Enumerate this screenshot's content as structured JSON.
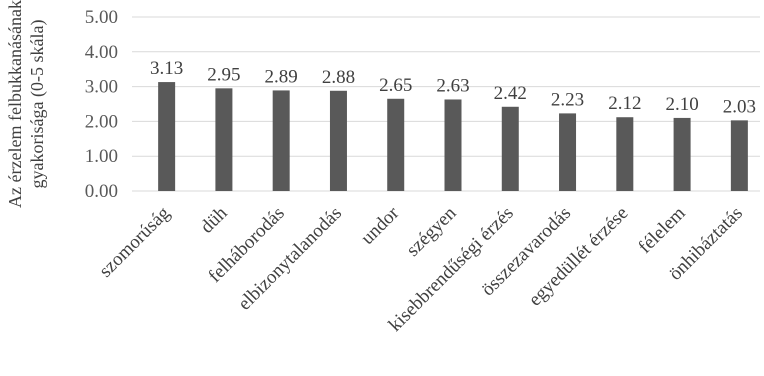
{
  "chart_data": {
    "type": "bar",
    "title": "",
    "xlabel": "",
    "ylabel_line1": "Az érzelem felbukkanásának",
    "ylabel_line2": "gyakorisága (0-5 skála)",
    "ylim": [
      0,
      5
    ],
    "yticks": [
      "0.00",
      "1.00",
      "2.00",
      "3.00",
      "4.00",
      "5.00"
    ],
    "grid": true,
    "bar_color": "#595959",
    "categories": [
      "szomorúság",
      "düh",
      "felháborodás",
      "elbizonytalanodás",
      "undor",
      "szégyen",
      "kisebbrendűségi érzés",
      "összezavarodás",
      "egyedüllét érzése",
      "félelem",
      "önhibáztatás"
    ],
    "values": [
      3.13,
      2.95,
      2.89,
      2.88,
      2.65,
      2.63,
      2.42,
      2.23,
      2.12,
      2.1,
      2.03
    ],
    "value_labels": [
      "3.13",
      "2.95",
      "2.89",
      "2.88",
      "2.65",
      "2.63",
      "2.42",
      "2.23",
      "2.12",
      "2.10",
      "2.03"
    ]
  }
}
